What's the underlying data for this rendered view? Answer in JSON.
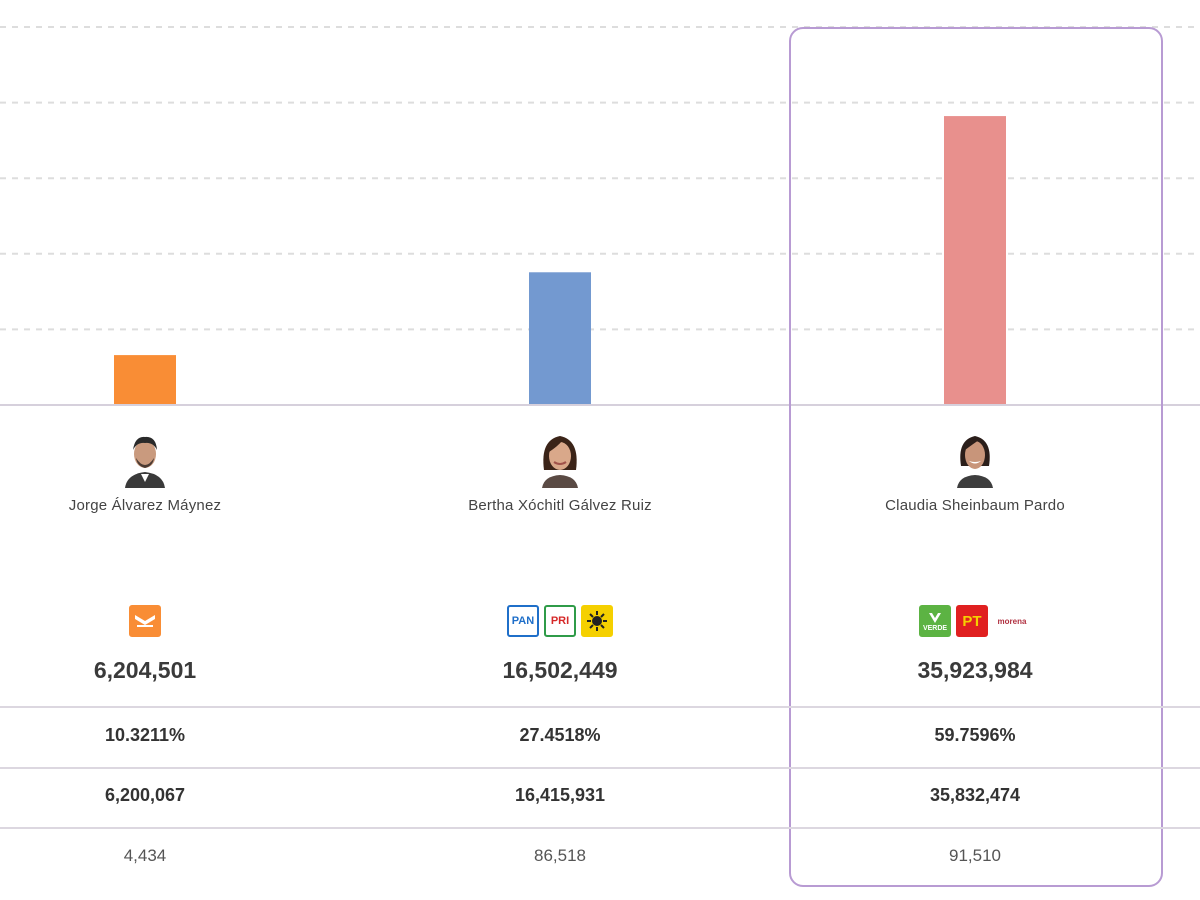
{
  "chart_data": {
    "type": "bar",
    "categories": [
      "Jorge Álvarez Máynez",
      "Bertha Xóchitl Gálvez Ruiz",
      "Claudia Sheinbaum Pardo"
    ],
    "values": [
      6204501,
      16502449,
      35923984
    ],
    "colors": [
      "#f98d35",
      "#7399d0",
      "#e8908d"
    ],
    "ylim": [
      0,
      47000000
    ],
    "grid": true,
    "highlighted": "Claudia Sheinbaum Pardo"
  },
  "candidates": [
    {
      "name": "Jorge Álvarez Máynez",
      "avatar_icon": "candidate-photo-icon",
      "party_logos": [
        {
          "icon": "movimiento-ciudadano-logo-icon",
          "color": "#f98d35"
        }
      ],
      "votes": "6,204,501",
      "percentage": "10.3211%",
      "votes_national": "6,200,067",
      "votes_abroad": "4,434"
    },
    {
      "name": "Bertha Xóchitl Gálvez Ruiz",
      "avatar_icon": "candidate-photo-icon",
      "party_logos": [
        {
          "icon": "pan-logo-icon",
          "text": "PAN",
          "color": "#1f6fc9"
        },
        {
          "icon": "pri-logo-icon",
          "text": "PRI",
          "color": "#2f9b48"
        },
        {
          "icon": "prd-logo-icon",
          "color": "#f5d000"
        }
      ],
      "votes": "16,502,449",
      "percentage": "27.4518%",
      "votes_national": "16,415,931",
      "votes_abroad": "86,518"
    },
    {
      "name": "Claudia Sheinbaum Pardo",
      "avatar_icon": "candidate-photo-icon",
      "party_logos": [
        {
          "icon": "pvem-logo-icon",
          "text": "VERDE",
          "color": "#5cb343"
        },
        {
          "icon": "pt-logo-icon",
          "text": "PT",
          "color": "#e02020"
        },
        {
          "icon": "morena-logo-icon",
          "text": "morena",
          "color": "#b03040"
        }
      ],
      "votes": "35,923,984",
      "percentage": "59.7596%",
      "votes_national": "35,832,474",
      "votes_abroad": "91,510"
    }
  ]
}
